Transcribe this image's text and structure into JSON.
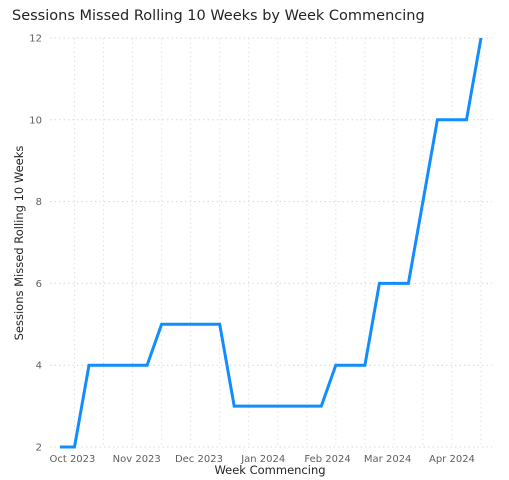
{
  "chart_data": {
    "type": "line",
    "title": "Sessions Missed Rolling 10 Weeks by Week Commencing",
    "xlabel": "Week Commencing",
    "ylabel": "Sessions Missed Rolling 10 Weeks",
    "ylim": [
      2,
      12
    ],
    "y_ticks": [
      "2",
      "4",
      "6",
      "8",
      "10",
      "12"
    ],
    "x_tick_labels": [
      "Oct 2023",
      "Nov 2023",
      "Dec 2023",
      "Jan 2024",
      "Feb 2024",
      "Mar 2024",
      "Apr 2024"
    ],
    "grid": "dotted",
    "color": "#118DFF",
    "series": [
      {
        "x": [
          "2023-09-25",
          "2023-10-02",
          "2023-10-09",
          "2023-10-16",
          "2023-10-23",
          "2023-10-30",
          "2023-11-06",
          "2023-11-13",
          "2023-11-20",
          "2023-11-27",
          "2023-12-04",
          "2023-12-11",
          "2023-12-18",
          "2023-12-25",
          "2024-01-01",
          "2024-01-08",
          "2024-01-15",
          "2024-01-22",
          "2024-01-29",
          "2024-02-05",
          "2024-02-12",
          "2024-02-19",
          "2024-02-26",
          "2024-03-04",
          "2024-03-11",
          "2024-03-18",
          "2024-03-25",
          "2024-04-01",
          "2024-04-08",
          "2024-04-15"
        ],
        "y": [
          2,
          2,
          4,
          4,
          4,
          4,
          4,
          5,
          5,
          5,
          5,
          5,
          3,
          3,
          3,
          3,
          3,
          3,
          3,
          4,
          4,
          4,
          6,
          6,
          6,
          8,
          10,
          10,
          10,
          12
        ]
      }
    ]
  }
}
